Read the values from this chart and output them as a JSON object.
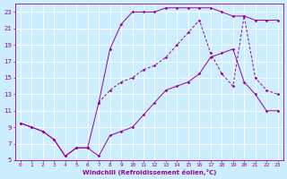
{
  "xlabel": "Windchill (Refroidissement éolien,°C)",
  "bg_color": "#cceeff",
  "line_color": "#990099",
  "grid_color": "#ffffff",
  "xmin": 0,
  "xmax": 23,
  "ymin": 5,
  "ymax": 24,
  "yticks": [
    5,
    7,
    9,
    11,
    13,
    15,
    17,
    19,
    21,
    23
  ],
  "line1_x": [
    0,
    1,
    2,
    3,
    4,
    5,
    6,
    7,
    8,
    9,
    10,
    11,
    12,
    13,
    14,
    15,
    16,
    17,
    18,
    19,
    20,
    21,
    22,
    23
  ],
  "line1_y": [
    9.5,
    9.0,
    8.5,
    7.5,
    5.5,
    6.5,
    6.5,
    5.5,
    8.0,
    8.5,
    9.0,
    10.5,
    12.0,
    13.5,
    14.0,
    14.5,
    15.5,
    17.5,
    18.0,
    18.5,
    14.5,
    13.0,
    11.0,
    11.0
  ],
  "line2_x": [
    0,
    1,
    2,
    3,
    4,
    5,
    6,
    7,
    8,
    9,
    10,
    11,
    12,
    13,
    14,
    15,
    16,
    17,
    18,
    19,
    20,
    21,
    22,
    23
  ],
  "line2_y": [
    9.5,
    9.0,
    8.5,
    7.5,
    5.5,
    6.5,
    6.5,
    12.0,
    18.5,
    21.5,
    23.0,
    23.0,
    23.0,
    23.5,
    23.5,
    23.5,
    23.5,
    23.5,
    23.0,
    22.5,
    22.5,
    22.0,
    22.0,
    22.0
  ],
  "line3_x": [
    7,
    8,
    9,
    10,
    11,
    12,
    13,
    14,
    15,
    16,
    17,
    18,
    19,
    20,
    21,
    22,
    23
  ],
  "line3_y": [
    12.0,
    13.5,
    14.5,
    15.0,
    16.0,
    16.5,
    17.5,
    19.0,
    20.5,
    22.0,
    18.0,
    15.5,
    14.0,
    22.5,
    15.0,
    13.5,
    13.0
  ]
}
